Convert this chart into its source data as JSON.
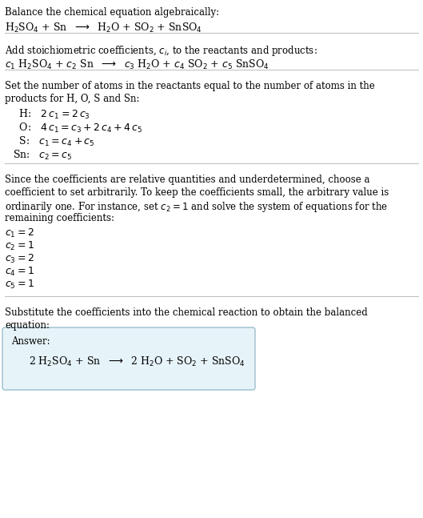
{
  "title": "Balance the chemical equation algebraically:",
  "eq1": "H$_2$SO$_4$ + Sn  $\\longrightarrow$  H$_2$O + SO$_2$ + SnSO$_4$",
  "sec2_hdr": "Add stoichiometric coefficients, $c_i$, to the reactants and products:",
  "eq2": "$c_1$ H$_2$SO$_4$ + $c_2$ Sn  $\\longrightarrow$  $c_3$ H$_2$O + $c_4$ SO$_2$ + $c_5$ SnSO$_4$",
  "sec3_line1": "Set the number of atoms in the reactants equal to the number of atoms in the",
  "sec3_line2": "products for H, O, S and Sn:",
  "atom_H": "  H:   $2\\,c_1 = 2\\,c_3$",
  "atom_O": "  O:   $4\\,c_1 = c_3 + 2\\,c_4 + 4\\,c_5$",
  "atom_S": "  S:   $c_1 = c_4 + c_5$",
  "atom_Sn": "Sn:   $c_2 = c_5$",
  "sec4_line1": "Since the coefficients are relative quantities and underdetermined, choose a",
  "sec4_line2": "coefficient to set arbitrarily. To keep the coefficients small, the arbitrary value is",
  "sec4_line3": "ordinarily one. For instance, set $c_2 = 1$ and solve the system of equations for the",
  "sec4_line4": "remaining coefficients:",
  "c1": "$c_1 = 2$",
  "c2": "$c_2 = 1$",
  "c3": "$c_3 = 2$",
  "c4": "$c_4 = 1$",
  "c5": "$c_5 = 1$",
  "sec5_line1": "Substitute the coefficients into the chemical reaction to obtain the balanced",
  "sec5_line2": "equation:",
  "answer_label": "Answer:",
  "answer_eq": "2 H$_2$SO$_4$ + Sn  $\\longrightarrow$  2 H$_2$O + SO$_2$ + SnSO$_4$",
  "bg_color": "#ffffff",
  "text_color": "#000000",
  "line_color": "#bbbbbb",
  "box_face": "#e6f3f8",
  "box_edge": "#9bbfcc"
}
